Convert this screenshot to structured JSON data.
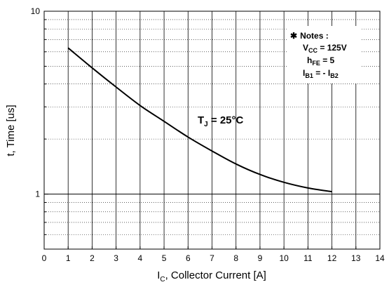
{
  "chart_data": {
    "type": "line",
    "xlabel": {
      "main": "I",
      "sub": "C",
      "rest": ", Collector Current [A]"
    },
    "ylabel": "t, Time [us]",
    "xlim": [
      0,
      14
    ],
    "ylim": [
      0.5,
      10
    ],
    "y_scale": "log",
    "grid": true,
    "x_ticks": [
      "0",
      "1",
      "2",
      "3",
      "4",
      "5",
      "6",
      "7",
      "8",
      "9",
      "10",
      "11",
      "12",
      "13",
      "14"
    ],
    "y_ticks": [
      {
        "value": 1,
        "label": "1"
      },
      {
        "value": 10,
        "label": "10"
      }
    ],
    "series": [
      {
        "x": [
          1,
          2,
          3,
          4,
          5,
          6,
          7,
          8,
          9,
          10,
          11,
          12
        ],
        "y": [
          6.3,
          4.9,
          3.85,
          3.05,
          2.5,
          2.05,
          1.72,
          1.46,
          1.28,
          1.16,
          1.08,
          1.03
        ]
      }
    ],
    "annotations": {
      "temperature": {
        "main": "T",
        "sub": "J",
        "rest": " = 25°C"
      },
      "notes_title": "Notes :",
      "notes_marker": "✱",
      "notes": [
        {
          "main": "V",
          "sub": "CC",
          "rest": " = 125V"
        },
        {
          "main": "h",
          "sub": "FE",
          "rest": " = 5"
        },
        {
          "main": "I",
          "sub": "B1",
          "rest": " = - I",
          "sub2": "B2"
        }
      ]
    }
  },
  "colors": {
    "line": "#000000",
    "grid": "#000000",
    "background": "#ffffff"
  }
}
